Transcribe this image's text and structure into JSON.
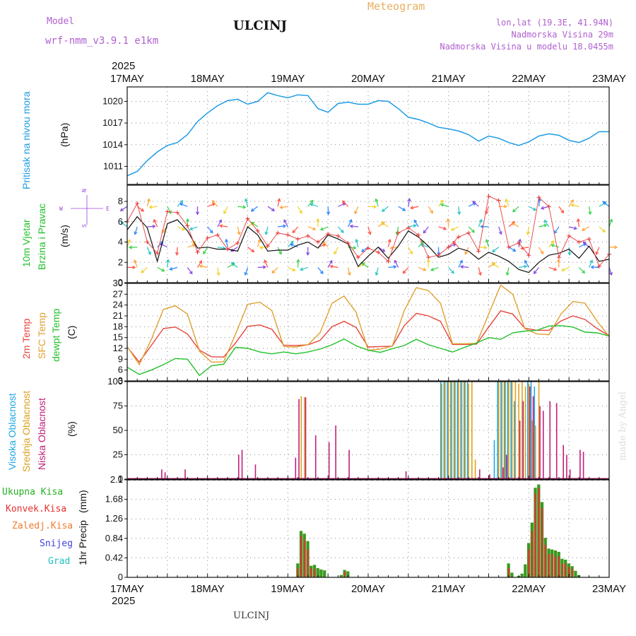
{
  "header": {
    "model_label": "Model",
    "model_name": "wrf-nmm_v3.9.1 e1km",
    "station": "ULCINJ",
    "chart_title": "Meteogram",
    "coords": "lon,lat (19.3E, 41.94N)",
    "elevation": "Nadmorska Visina 29m",
    "model_elevation": "Nadmorska Visina u modelu 18.0455m",
    "footer_station": "ULCINJ",
    "watermark": "made by Angel"
  },
  "colors": {
    "pressure": "#1e9be6",
    "temp2m": "#e8453c",
    "sfc": "#e0a030",
    "dewpt": "#22c02a",
    "high_cloud": "#1ea8e6",
    "mid_cloud": "#dca020",
    "low_cloud": "#c0207a",
    "precip_total": "#3a9a20",
    "precip_conv": "#e83030",
    "label_purple": "#b060d0",
    "wind_dir": "#a040e0"
  },
  "chart_data": [
    {
      "type": "line",
      "panel": "pressure",
      "ylabel": "Pritisak na nivou mora",
      "unit": "(hPa)",
      "ylim": [
        1008.5,
        1022
      ],
      "yticks": [
        1011,
        1014,
        1017,
        1020
      ],
      "x_start": "2025-05-17T00",
      "x_end": "2025-05-23T00",
      "x_ticks": [
        "17MAY",
        "18MAY",
        "19MAY",
        "20MAY",
        "21MAY",
        "22MAY",
        "23MAY"
      ],
      "top_year": "2025",
      "bottom_year": "2025",
      "grid": true,
      "x_hours": [
        0,
        3,
        6,
        9,
        12,
        15,
        18,
        21,
        24,
        27,
        30,
        33,
        36,
        39,
        42,
        45,
        48,
        51,
        54,
        57,
        60,
        63,
        66,
        69,
        72,
        75,
        78,
        81,
        84,
        87,
        90,
        93,
        96,
        99,
        102,
        105,
        108,
        111,
        114,
        117,
        120,
        123,
        126,
        129,
        132,
        135,
        138,
        141,
        144
      ],
      "values": [
        1009.7,
        1010.3,
        1011.8,
        1013.0,
        1013.9,
        1014.3,
        1015.4,
        1017.2,
        1018.4,
        1019.4,
        1020.1,
        1020.3,
        1019.6,
        1020.0,
        1021.2,
        1020.8,
        1020.5,
        1020.9,
        1020.8,
        1019.0,
        1018.5,
        1019.7,
        1019.9,
        1019.6,
        1019.6,
        1020.1,
        1020.0,
        1019.0,
        1017.8,
        1017.5,
        1017.0,
        1016.4,
        1016.2,
        1015.9,
        1015.4,
        1014.5,
        1015.2,
        1014.9,
        1014.3,
        1013.9,
        1014.4,
        1015.2,
        1015.5,
        1015.3,
        1014.6,
        1014.3,
        1014.9,
        1015.8,
        1015.8
      ]
    },
    {
      "type": "line",
      "panel": "wind",
      "ylabel": "10m Vjetar",
      "ylabel2": "Brzina i Pravac",
      "unit": "(m/s)",
      "compass": {
        "n": "N",
        "s": "S",
        "e": "E",
        "w": "W"
      },
      "ylim": [
        0,
        9.6
      ],
      "yticks": [
        0,
        2,
        4,
        6,
        8
      ],
      "x_hours": [
        0,
        3,
        6,
        9,
        12,
        15,
        18,
        21,
        24,
        27,
        30,
        33,
        36,
        39,
        42,
        45,
        48,
        51,
        54,
        57,
        60,
        63,
        66,
        69,
        72,
        75,
        78,
        81,
        84,
        87,
        90,
        93,
        96,
        99,
        102,
        105,
        108,
        111,
        114,
        117,
        120,
        123,
        126,
        129,
        132,
        135,
        138,
        141,
        144
      ],
      "speed": [
        5.2,
        6.5,
        5.4,
        2.1,
        5.8,
        6.2,
        5.1,
        3.4,
        3.5,
        3.3,
        3.3,
        3.1,
        5.5,
        4.7,
        3.1,
        3.2,
        3.2,
        3.7,
        4.0,
        3.4,
        4.7,
        4.3,
        3.8,
        1.6,
        2.6,
        3.5,
        2.4,
        3.6,
        5.1,
        4.5,
        3.6,
        2.5,
        2.8,
        3.4,
        3.1,
        2.3,
        3.0,
        2.6,
        2.1,
        1.3,
        1.0,
        2.0,
        2.7,
        2.9,
        3.3,
        2.4,
        3.6,
        2.1,
        2.3
      ],
      "gust": [
        6.0,
        7.8,
        4.0,
        2.9,
        7.0,
        6.9,
        5.6,
        3.0,
        4.4,
        4.7,
        3.3,
        3.9,
        6.3,
        5.1,
        3.6,
        4.9,
        4.7,
        4.3,
        4.6,
        4.0,
        4.8,
        4.6,
        3.9,
        2.5,
        3.4,
        3.0,
        2.1,
        4.9,
        5.4,
        4.7,
        2.5,
        2.7,
        3.5,
        4.5,
        4.9,
        3.1,
        8.5,
        8.1,
        3.5,
        3.9,
        2.7,
        8.4,
        7.5,
        2.5,
        4.6,
        4.0,
        4.3,
        1.6,
        2.8
      ]
    },
    {
      "type": "line",
      "panel": "temperature",
      "ylabel": "2m Temp",
      "ylabel2": "SFC Temp",
      "ylabel3": "dewpt Temp",
      "unit": "(C)",
      "ylim": [
        3,
        30
      ],
      "yticks": [
        3,
        6,
        9,
        12,
        15,
        18,
        21,
        24,
        27,
        30
      ],
      "x_hours": [
        0,
        3,
        6,
        9,
        12,
        15,
        18,
        21,
        24,
        27,
        30,
        33,
        36,
        39,
        42,
        45,
        48,
        51,
        54,
        57,
        60,
        63,
        66,
        69,
        72,
        75,
        78,
        81,
        84,
        87,
        90,
        93,
        96,
        99,
        102,
        105,
        108,
        111,
        114,
        117,
        120,
        123,
        126,
        129,
        132,
        135,
        138,
        141,
        144
      ],
      "series": [
        {
          "name": "2m Temp",
          "values": [
            12.4,
            8.2,
            12.8,
            17.5,
            17.9,
            16.0,
            11.5,
            9.7,
            9.6,
            13.5,
            18.1,
            18.5,
            17.3,
            12.9,
            12.8,
            13.0,
            14.2,
            18.0,
            19.5,
            17.8,
            12.4,
            12.5,
            12.6,
            18.3,
            21.7,
            21.0,
            19.5,
            13.1,
            13.1,
            13.2,
            17.9,
            22.4,
            21.5,
            17.6,
            17.0,
            17.0,
            19.6,
            21.0,
            20.0,
            17.5,
            15.5
          ]
        },
        {
          "name": "SFC Temp",
          "values": [
            12.5,
            7.5,
            14.5,
            22.8,
            23.8,
            21.5,
            11.2,
            8.2,
            8.3,
            16.0,
            24.2,
            24.8,
            22.5,
            12.5,
            12.4,
            13.0,
            16.3,
            24.5,
            26.5,
            22.0,
            11.5,
            11.8,
            12.6,
            22.5,
            28.8,
            28.0,
            24.5,
            13.3,
            13.3,
            13.4,
            21.5,
            29.5,
            27.0,
            17.5,
            16.0,
            15.8,
            21.5,
            25.0,
            24.5,
            19.5,
            15.3
          ]
        },
        {
          "name": "dewpt Temp",
          "values": [
            6.8,
            4.8,
            6.0,
            7.5,
            9.2,
            9.0,
            4.5,
            7.2,
            7.6,
            12.3,
            12.0,
            11.0,
            10.5,
            11.0,
            10.5,
            11.0,
            11.8,
            13.0,
            14.6,
            12.7,
            11.5,
            10.9,
            11.9,
            12.8,
            14.5,
            13.0,
            12.0,
            11.0,
            12.3,
            13.5,
            15.0,
            14.5,
            16.3,
            16.8,
            17.0,
            18.2,
            18.3,
            17.9,
            16.5,
            16.3,
            15.4
          ]
        }
      ],
      "series_hours": [
        0,
        3,
        6,
        9,
        12,
        15,
        18,
        21,
        24,
        27,
        30,
        33,
        36,
        39,
        42,
        45,
        48,
        51,
        54,
        57,
        60,
        63,
        66,
        69,
        72,
        75,
        78,
        81,
        84,
        87,
        90,
        93,
        96,
        99,
        102,
        105,
        108,
        111,
        114,
        117,
        120
      ]
    },
    {
      "type": "bar",
      "panel": "cloud",
      "ylabel": "Visoka Oblacnost",
      "ylabel2": "Srednja Oblacnost",
      "ylabel3": "Niska Oblacnost",
      "unit": "(%)",
      "ylim": [
        0,
        100
      ],
      "yticks": [
        0,
        25,
        50,
        75,
        100
      ],
      "low": [
        [
          10,
          10
        ],
        [
          11,
          7
        ],
        [
          17,
          10
        ],
        [
          33,
          25
        ],
        [
          34,
          30
        ],
        [
          38,
          15
        ],
        [
          50,
          22
        ],
        [
          51,
          82
        ],
        [
          53,
          84
        ],
        [
          56,
          45
        ],
        [
          60,
          38
        ],
        [
          62,
          55
        ],
        [
          66,
          30
        ],
        [
          83,
          8
        ],
        [
          105,
          10
        ],
        [
          108,
          5
        ],
        [
          112,
          12
        ],
        [
          113,
          25
        ],
        [
          117,
          60
        ],
        [
          118,
          80
        ],
        [
          120,
          95
        ],
        [
          121,
          85
        ],
        [
          123,
          75
        ],
        [
          124,
          70
        ],
        [
          126,
          80
        ],
        [
          128,
          78
        ],
        [
          130,
          35
        ],
        [
          131,
          25
        ],
        [
          132,
          10
        ],
        [
          135,
          30
        ],
        [
          136,
          28
        ]
      ],
      "mid": [
        [
          52,
          85
        ],
        [
          53,
          84
        ],
        [
          94,
          98
        ],
        [
          95,
          100
        ],
        [
          96,
          100
        ],
        [
          97,
          100
        ],
        [
          98,
          100
        ],
        [
          99,
          100
        ],
        [
          100,
          100
        ],
        [
          101,
          100
        ],
        [
          102,
          98
        ],
        [
          103,
          100
        ],
        [
          104,
          20
        ],
        [
          111,
          100
        ],
        [
          112,
          100
        ],
        [
          113,
          100
        ],
        [
          114,
          100
        ],
        [
          115,
          100
        ],
        [
          116,
          100
        ],
        [
          117,
          98
        ],
        [
          118,
          100
        ],
        [
          119,
          95
        ],
        [
          120,
          98
        ],
        [
          121,
          60
        ],
        [
          122,
          55
        ],
        [
          123,
          100
        ]
      ],
      "high": [
        [
          94,
          100
        ],
        [
          95,
          100
        ],
        [
          96,
          100
        ],
        [
          97,
          100
        ],
        [
          98,
          100
        ],
        [
          99,
          100
        ],
        [
          100,
          100
        ],
        [
          101,
          100
        ],
        [
          102,
          100
        ],
        [
          110,
          40
        ],
        [
          111,
          100
        ],
        [
          112,
          100
        ],
        [
          113,
          100
        ],
        [
          114,
          100
        ],
        [
          115,
          100
        ],
        [
          116,
          80
        ],
        [
          120,
          100
        ],
        [
          121,
          100
        ],
        [
          122,
          95
        ]
      ]
    },
    {
      "type": "bar",
      "panel": "precip",
      "ylabel": "1hr Precip",
      "unit": "(mm)",
      "legend": [
        "Ukupna  Kisa",
        "Konvek.Kisa",
        "Zaledj.Kisa",
        "Snijeg",
        "Grad"
      ],
      "ylim": [
        0,
        2.1
      ],
      "yticks": [
        0,
        0.42,
        0.84,
        1.26,
        1.68,
        2.1
      ],
      "total": [
        [
          51,
          0.3
        ],
        [
          52,
          1.0
        ],
        [
          53,
          0.94
        ],
        [
          54,
          0.78
        ],
        [
          55,
          0.25
        ],
        [
          56,
          0.27
        ],
        [
          57,
          0.2
        ],
        [
          58,
          0.17
        ],
        [
          59,
          0.15
        ],
        [
          64,
          0.05
        ],
        [
          65,
          0.16
        ],
        [
          66,
          0.13
        ],
        [
          114,
          0.3
        ],
        [
          115,
          0.1
        ],
        [
          117,
          0.03
        ],
        [
          118,
          0.08
        ],
        [
          119,
          0.28
        ],
        [
          120,
          0.74
        ],
        [
          121,
          1.18
        ],
        [
          122,
          1.93
        ],
        [
          123,
          2.0
        ],
        [
          124,
          1.62
        ],
        [
          125,
          0.85
        ],
        [
          126,
          0.62
        ],
        [
          127,
          0.6
        ],
        [
          128,
          0.58
        ],
        [
          129,
          0.55
        ],
        [
          130,
          0.4
        ],
        [
          131,
          0.38
        ],
        [
          132,
          0.3
        ],
        [
          133,
          0.24
        ],
        [
          134,
          0.14
        ],
        [
          135,
          0.05
        ]
      ],
      "conv": [
        [
          51,
          0.2
        ],
        [
          52,
          0.9
        ],
        [
          53,
          0.8
        ],
        [
          54,
          0.6
        ],
        [
          55,
          0.2
        ],
        [
          56,
          0.18
        ],
        [
          65,
          0.12
        ],
        [
          114,
          0.2
        ],
        [
          120,
          0.6
        ],
        [
          121,
          1.0
        ],
        [
          122,
          1.8
        ],
        [
          123,
          1.92
        ],
        [
          124,
          1.5
        ],
        [
          125,
          0.7
        ],
        [
          126,
          0.5
        ],
        [
          127,
          0.5
        ],
        [
          128,
          0.45
        ],
        [
          129,
          0.45
        ],
        [
          130,
          0.3
        ],
        [
          131,
          0.3
        ],
        [
          132,
          0.22
        ],
        [
          133,
          0.18
        ]
      ]
    }
  ]
}
